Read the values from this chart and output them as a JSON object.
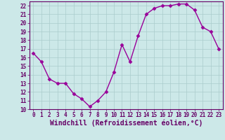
{
  "x": [
    0,
    1,
    2,
    3,
    4,
    5,
    6,
    7,
    8,
    9,
    10,
    11,
    12,
    13,
    14,
    15,
    16,
    17,
    18,
    19,
    20,
    21,
    22,
    23
  ],
  "y": [
    16.5,
    15.5,
    13.5,
    13.0,
    13.0,
    11.8,
    11.2,
    10.3,
    11.0,
    12.0,
    14.3,
    17.5,
    15.5,
    18.5,
    21.0,
    21.7,
    22.0,
    22.0,
    22.2,
    22.2,
    21.5,
    19.5,
    19.0,
    17.0
  ],
  "line_color": "#990099",
  "marker": "D",
  "markersize": 2.5,
  "linewidth": 1.0,
  "bg_color": "#cce8e8",
  "grid_color": "#aacccc",
  "xlabel": "Windchill (Refroidissement éolien,°C)",
  "xlim": [
    -0.5,
    23.5
  ],
  "ylim": [
    10,
    22.5
  ],
  "yticks": [
    10,
    11,
    12,
    13,
    14,
    15,
    16,
    17,
    18,
    19,
    20,
    21,
    22
  ],
  "xticks": [
    0,
    1,
    2,
    3,
    4,
    5,
    6,
    7,
    8,
    9,
    10,
    11,
    12,
    13,
    14,
    15,
    16,
    17,
    18,
    19,
    20,
    21,
    22,
    23
  ],
  "tick_fontsize": 5.5,
  "xlabel_fontsize": 7.0,
  "label_color": "#660066",
  "spine_color": "#660066"
}
